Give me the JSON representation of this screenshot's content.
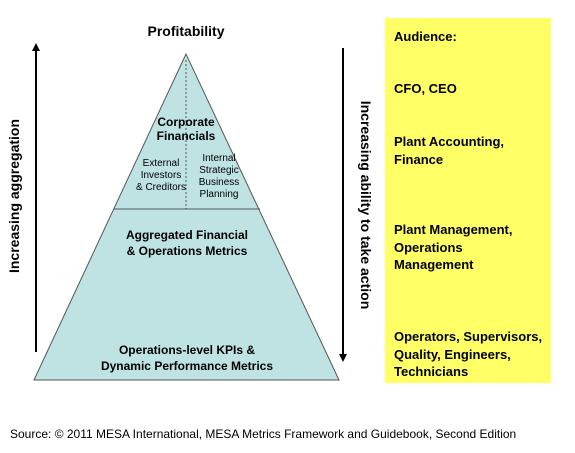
{
  "top_label": "Profitability",
  "left_axis_label": "Increasing aggregation",
  "right_axis_label": "Increasing ability to take action",
  "pyramid": {
    "top_title": "Corporate Financials",
    "top_title_line1": "Corporate",
    "top_title_line2": "Financials",
    "left_sub": [
      "External",
      "Investors",
      "& Creditors"
    ],
    "right_sub": [
      "Internal",
      "Strategic",
      "Business",
      "Planning"
    ],
    "middle": [
      "Aggregated Financial",
      "& Operations Metrics"
    ],
    "bottom": [
      "Operations-level KPIs &",
      "Dynamic Performance Metrics"
    ]
  },
  "audience": {
    "header": "Audience:",
    "groups": [
      [
        "CFO, CEO"
      ],
      [
        "Plant Accounting,",
        "Finance"
      ],
      [
        "Plant Management,",
        "Operations",
        "Management"
      ],
      [
        "Operators, Supervisors,",
        "Quality, Engineers,",
        "Technicians"
      ]
    ]
  },
  "source": "Source: © 2011 MESA International, MESA Metrics Framework and Guidebook, Second Edition",
  "colors": {
    "pyramid_fill": "#bfe3e3",
    "pyramid_stroke": "#555555",
    "audience_fill": "#ffff66",
    "arrow": "#000000"
  }
}
